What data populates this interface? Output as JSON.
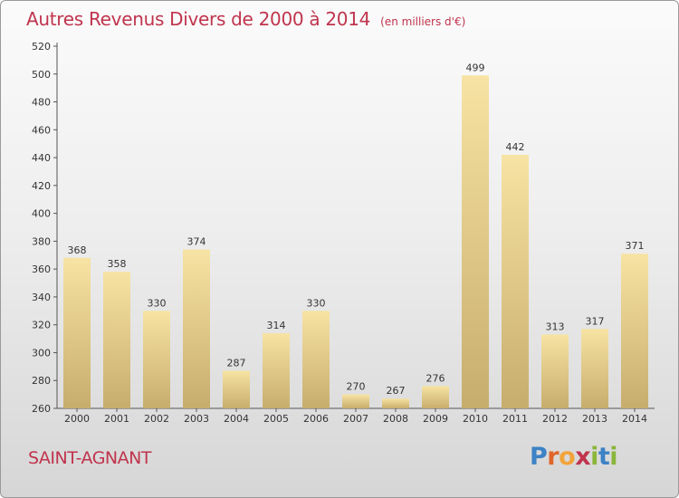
{
  "header": {
    "title": "Autres Revenus Divers de 2000 à 2014",
    "unit": "(en milliers d'€)"
  },
  "footer": {
    "place": "SAINT-AGNANT",
    "logo_text": "Proxiti",
    "logo_colors": [
      "#3c82c6",
      "#e0652a",
      "#f2a33a",
      "#c0344d",
      "#8bb63c",
      "#3c82c6",
      "#8bb63c"
    ]
  },
  "colors": {
    "text_accent": "#c0344d",
    "bar_light": "#f7e3a3",
    "bar_dark": "#c7ad6d"
  },
  "chart_data": {
    "type": "bar",
    "categories": [
      "2000",
      "2001",
      "2002",
      "2003",
      "2004",
      "2005",
      "2006",
      "2007",
      "2008",
      "2009",
      "2010",
      "2011",
      "2012",
      "2013",
      "2014"
    ],
    "values": [
      368,
      358,
      330,
      374,
      287,
      314,
      330,
      270,
      267,
      276,
      499,
      442,
      313,
      317,
      371
    ],
    "title": "Autres Revenus Divers de 2000 à 2014",
    "ylim": [
      260,
      520
    ],
    "yticks": [
      260,
      280,
      300,
      320,
      340,
      360,
      380,
      400,
      420,
      440,
      460,
      480,
      500,
      520
    ],
    "grid": false,
    "data_labels": true
  }
}
